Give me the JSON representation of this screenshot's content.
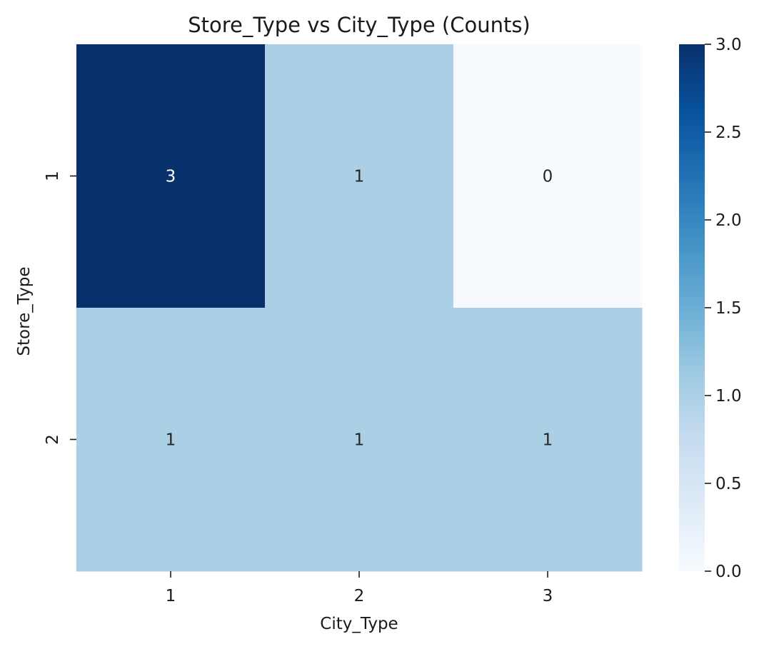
{
  "chart_data": {
    "type": "heatmap",
    "title": "Store_Type vs City_Type (Counts)",
    "xlabel": "City_Type",
    "ylabel": "Store_Type",
    "x_categories": [
      "1",
      "2",
      "3"
    ],
    "y_categories": [
      "1",
      "2"
    ],
    "values": [
      [
        3,
        1,
        0
      ],
      [
        1,
        1,
        1
      ]
    ],
    "value_labels": [
      [
        "3",
        "1",
        "0"
      ],
      [
        "1",
        "1",
        "1"
      ]
    ],
    "colormap": "Blues",
    "vmin": 0,
    "vmax": 3,
    "colorbar_ticks": [
      0,
      0.5,
      1,
      1.5,
      2,
      2.5,
      3
    ],
    "colorbar_tick_labels": [
      "0.0",
      "0.5",
      "1.0",
      "1.5",
      "2.0",
      "2.5",
      "3.0"
    ],
    "colors": {
      "cmap_stops": [
        "#f7fbff",
        "#deebf7",
        "#c6dbef",
        "#9ecae1",
        "#6baed6",
        "#4292c6",
        "#2171b5",
        "#08519c",
        "#08306b"
      ],
      "dark_text": "#262626",
      "light_text": "#ffffff"
    }
  }
}
